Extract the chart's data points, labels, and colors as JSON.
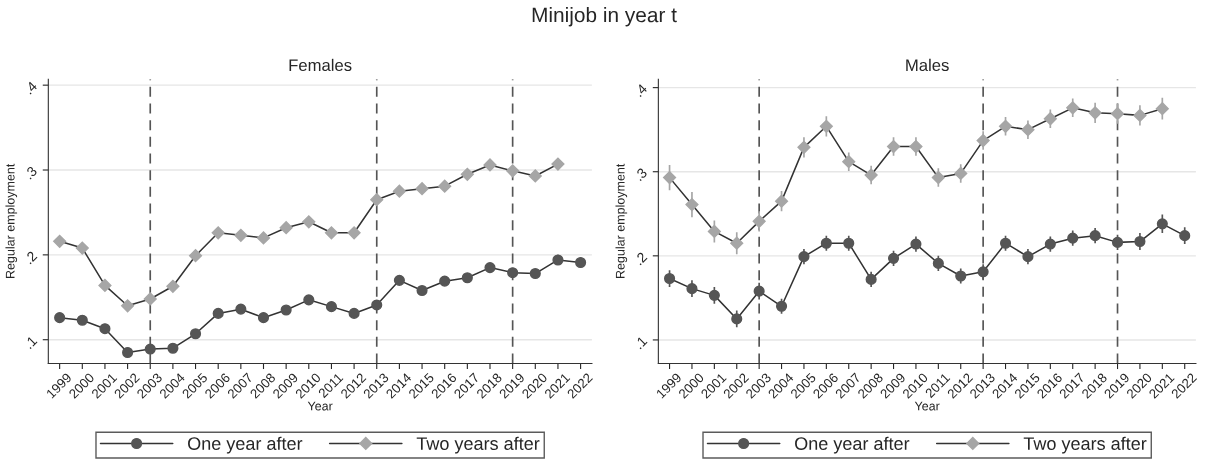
{
  "chart_data": [
    {
      "type": "line",
      "title": "Females",
      "xlabel": "Year",
      "ylabel": "Regular employment",
      "annotations": [
        "Minijob in year t"
      ],
      "x": [
        1999,
        2000,
        2001,
        2002,
        2003,
        2004,
        2005,
        2006,
        2007,
        2008,
        2009,
        2010,
        2011,
        2012,
        2013,
        2014,
        2015,
        2016,
        2017,
        2018,
        2019,
        2020,
        2021,
        2022
      ],
      "series": [
        {
          "name": "One year after",
          "color": "#555555",
          "marker": "circle",
          "values": [
            0.126,
            0.123,
            0.113,
            0.085,
            0.089,
            0.09,
            0.107,
            0.131,
            0.136,
            0.126,
            0.135,
            0.147,
            0.139,
            0.131,
            0.141,
            0.17,
            0.158,
            0.169,
            0.173,
            0.185,
            0.179,
            0.178,
            0.194,
            0.191
          ],
          "errors": [
            0.003,
            0.003,
            0.003,
            0.003,
            0.003,
            0.003,
            0.003,
            0.003,
            0.003,
            0.003,
            0.003,
            0.003,
            0.003,
            0.003,
            0.003,
            0.004,
            0.004,
            0.004,
            0.004,
            0.005,
            0.005,
            0.005,
            0.006,
            0.006
          ]
        },
        {
          "name": "Two years after",
          "color": "#a6a6a6",
          "marker": "diamond",
          "values": [
            0.216,
            0.208,
            0.164,
            0.14,
            0.148,
            0.163,
            0.199,
            0.226,
            0.223,
            0.22,
            0.232,
            0.239,
            0.226,
            0.226,
            0.265,
            0.275,
            0.278,
            0.281,
            0.295,
            0.306,
            0.299,
            0.293,
            0.307,
            null
          ],
          "errors": [
            0.003,
            0.003,
            0.003,
            0.003,
            0.003,
            0.003,
            0.003,
            0.004,
            0.004,
            0.004,
            0.004,
            0.004,
            0.004,
            0.004,
            0.004,
            0.005,
            0.005,
            0.005,
            0.005,
            0.006,
            0.006,
            0.006,
            0.007,
            null
          ]
        }
      ],
      "xlim": [
        1998.5,
        2022.5
      ],
      "xticks": [
        1999,
        2000,
        2001,
        2002,
        2003,
        2004,
        2005,
        2006,
        2007,
        2008,
        2009,
        2010,
        2011,
        2012,
        2013,
        2014,
        2015,
        2016,
        2017,
        2018,
        2019,
        2020,
        2021,
        2022
      ],
      "ylim": [
        0.072,
        0.407
      ],
      "yticks": [
        {
          "value": 0.1,
          "label": ".1"
        },
        {
          "value": 0.2,
          "label": ".2"
        },
        {
          "value": 0.3,
          "label": ".3"
        },
        {
          "value": 0.4,
          "label": ".4"
        }
      ],
      "ref_lines": [
        {
          "axis": "x",
          "value": 2003,
          "color": "#555555",
          "line_style": "dashed"
        },
        {
          "axis": "x",
          "value": 2013,
          "color": "#555555",
          "line_style": "dashed"
        },
        {
          "axis": "x",
          "value": 2019,
          "color": "#555555",
          "line_style": "dashed"
        }
      ],
      "grid": "y",
      "legend": "bottom"
    },
    {
      "type": "line",
      "title": "Males",
      "xlabel": "Year",
      "ylabel": "Regular employment",
      "x": [
        1999,
        2000,
        2001,
        2002,
        2003,
        2004,
        2005,
        2006,
        2007,
        2008,
        2009,
        2010,
        2011,
        2012,
        2013,
        2014,
        2015,
        2016,
        2017,
        2018,
        2019,
        2020,
        2021,
        2022
      ],
      "series": [
        {
          "name": "One year after",
          "color": "#555555",
          "marker": "circle",
          "values": [
            0.173,
            0.161,
            0.153,
            0.125,
            0.158,
            0.14,
            0.199,
            0.215,
            0.215,
            0.172,
            0.197,
            0.214,
            0.191,
            0.176,
            0.181,
            0.215,
            0.199,
            0.214,
            0.221,
            0.224,
            0.216,
            0.217,
            0.238,
            0.224
          ],
          "errors": [
            0.01,
            0.01,
            0.01,
            0.01,
            0.01,
            0.009,
            0.009,
            0.009,
            0.009,
            0.009,
            0.009,
            0.009,
            0.009,
            0.009,
            0.009,
            0.009,
            0.009,
            0.009,
            0.009,
            0.009,
            0.009,
            0.01,
            0.011,
            0.01
          ]
        },
        {
          "name": "Two years after",
          "color": "#a6a6a6",
          "marker": "diamond",
          "values": [
            0.293,
            0.261,
            0.229,
            0.215,
            0.241,
            0.265,
            0.329,
            0.354,
            0.312,
            0.296,
            0.33,
            0.33,
            0.293,
            0.298,
            0.337,
            0.354,
            0.35,
            0.363,
            0.376,
            0.37,
            0.369,
            0.367,
            0.375,
            null
          ],
          "errors": [
            0.015,
            0.015,
            0.013,
            0.013,
            0.012,
            0.012,
            0.012,
            0.012,
            0.011,
            0.011,
            0.011,
            0.011,
            0.011,
            0.011,
            0.011,
            0.011,
            0.011,
            0.011,
            0.011,
            0.012,
            0.012,
            0.012,
            0.013,
            null
          ]
        }
      ],
      "xlim": [
        1998.5,
        2022.5
      ],
      "xticks": [
        1999,
        2000,
        2001,
        2002,
        2003,
        2004,
        2005,
        2006,
        2007,
        2008,
        2009,
        2010,
        2011,
        2012,
        2013,
        2014,
        2015,
        2016,
        2017,
        2018,
        2019,
        2020,
        2021,
        2022
      ],
      "ylim": [
        0.072,
        0.41
      ],
      "yticks": [
        {
          "value": 0.1,
          "label": ".1"
        },
        {
          "value": 0.2,
          "label": ".2"
        },
        {
          "value": 0.3,
          "label": ".3"
        },
        {
          "value": 0.4,
          "label": ".4"
        }
      ],
      "ref_lines": [
        {
          "axis": "x",
          "value": 2003,
          "color": "#555555",
          "line_style": "dashed"
        },
        {
          "axis": "x",
          "value": 2013,
          "color": "#555555",
          "line_style": "dashed"
        },
        {
          "axis": "x",
          "value": 2019,
          "color": "#555555",
          "line_style": "dashed"
        }
      ],
      "grid": "y",
      "legend": "bottom"
    }
  ]
}
